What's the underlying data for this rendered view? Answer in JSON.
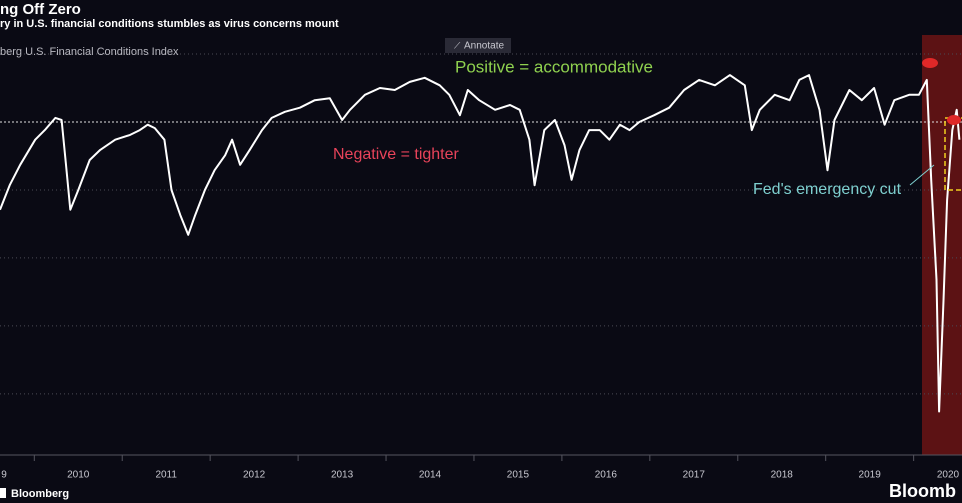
{
  "chart_data": {
    "type": "line",
    "title": "ng Off Zero",
    "subtitle": "ry in U.S. financial conditions stumbles as virus concerns mount",
    "button": "Annotate",
    "source": "Bloomberg",
    "logo": "Bloomb",
    "annotations": [
      "Positive = accommodative",
      "Negative = tighter",
      "Fed's emergency cut"
    ],
    "x": [
      2009.61,
      2009.72,
      2009.84,
      2010.01,
      2010.12,
      2010.24,
      2010.31,
      2010.36,
      2010.41,
      2010.5,
      2010.63,
      2010.75,
      2010.92,
      2011.09,
      2011.2,
      2011.29,
      2011.37,
      2011.48,
      2011.56,
      2011.66,
      2011.75,
      2011.83,
      2011.94,
      2012.05,
      2012.17,
      2012.25,
      2012.34,
      2012.45,
      2012.59,
      2012.7,
      2012.85,
      2013.02,
      2013.19,
      2013.36,
      2013.5,
      2013.59,
      2013.76,
      2013.93,
      2014.1,
      2014.27,
      2014.44,
      2014.61,
      2014.72,
      2014.84,
      2014.93,
      2015.06,
      2015.24,
      2015.41,
      2015.52,
      2015.63,
      2015.69,
      2015.8,
      2015.92,
      2016.03,
      2016.11,
      2016.2,
      2016.31,
      2016.43,
      2016.54,
      2016.66,
      2016.77,
      2016.88,
      2017.05,
      2017.22,
      2017.39,
      2017.56,
      2017.74,
      2017.91,
      2018.08,
      2018.16,
      2018.25,
      2018.42,
      2018.59,
      2018.7,
      2018.81,
      2018.93,
      2019.02,
      2019.1,
      2019.27,
      2019.41,
      2019.55,
      2019.67,
      2019.78,
      2019.95,
      2020.06,
      2020.15,
      2020.2,
      2020.26,
      2020.29,
      2020.34,
      2020.38,
      2020.44,
      2020.49,
      2020.52
    ],
    "series": [
      {
        "name": "berg U.S. Financial Conditions Index",
        "color": "#ffffff",
        "values": [
          -1.29,
          -0.93,
          -0.63,
          -0.26,
          -0.12,
          0.06,
          0.03,
          -0.63,
          -1.29,
          -1.0,
          -0.56,
          -0.41,
          -0.26,
          -0.19,
          -0.12,
          -0.04,
          -0.09,
          -0.26,
          -1.0,
          -1.37,
          -1.66,
          -1.37,
          -1.0,
          -0.71,
          -0.49,
          -0.26,
          -0.63,
          -0.41,
          -0.12,
          0.06,
          0.15,
          0.21,
          0.32,
          0.35,
          0.03,
          0.18,
          0.4,
          0.5,
          0.47,
          0.59,
          0.65,
          0.54,
          0.4,
          0.1,
          0.47,
          0.32,
          0.18,
          0.25,
          0.18,
          -0.26,
          -0.93,
          -0.12,
          0.03,
          -0.34,
          -0.85,
          -0.41,
          -0.12,
          -0.12,
          -0.26,
          -0.04,
          -0.12,
          0.0,
          0.1,
          0.21,
          0.47,
          0.62,
          0.54,
          0.69,
          0.54,
          -0.12,
          0.18,
          0.4,
          0.32,
          0.62,
          0.69,
          0.18,
          -0.71,
          0.03,
          0.47,
          0.32,
          0.5,
          -0.04,
          0.32,
          0.4,
          0.4,
          0.62,
          -0.85,
          -2.32,
          -4.26,
          -2.63,
          -1.15,
          -0.12,
          0.18,
          -0.26
        ]
      }
    ],
    "xlim": [
      2009.61,
      2020.55
    ],
    "xticks": [
      {
        "value": 2009,
        "label": "9"
      },
      2010,
      2011,
      2012,
      2013,
      2014,
      2015,
      2016,
      2017,
      2018,
      2019,
      2020
    ],
    "ylim": [
      -4.9,
      1.28
    ],
    "yticks": [
      1,
      0,
      -1,
      -2,
      -3,
      -4
    ],
    "grid": true
  }
}
